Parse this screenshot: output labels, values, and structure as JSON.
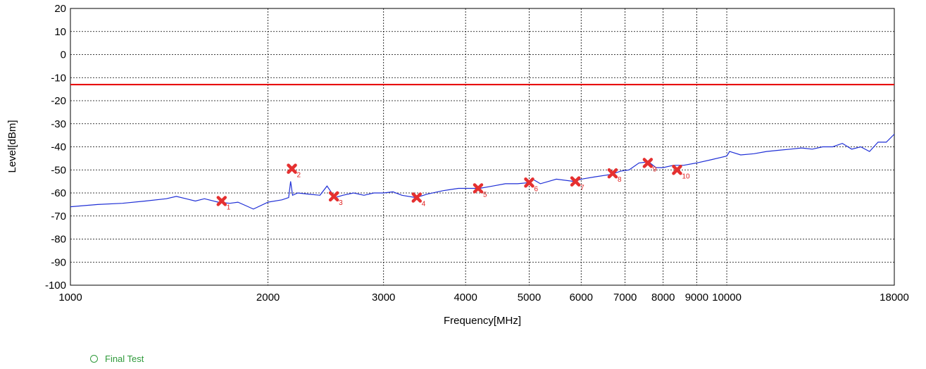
{
  "chart_data": {
    "type": "line",
    "xlabel": "Frequency[MHz]",
    "ylabel": "Level[dBm]",
    "xscale": "log",
    "xlim": [
      1000,
      18000
    ],
    "ylim": [
      -100,
      20
    ],
    "grid": true,
    "x_ticks": [
      1000,
      2000,
      3000,
      4000,
      5000,
      6000,
      7000,
      8000,
      9000,
      10000,
      18000
    ],
    "x_tick_labels": [
      "1000",
      "2000",
      "3000",
      "4000",
      "5000",
      "6000",
      "7000",
      "8000",
      "9000",
      "10000",
      "18000"
    ],
    "y_ticks": [
      20,
      10,
      0,
      -10,
      -20,
      -30,
      -40,
      -50,
      -60,
      -70,
      -80,
      -90,
      -100
    ],
    "y_tick_labels": [
      "20",
      "10",
      "0",
      "-10",
      "-20",
      "-30",
      "-40",
      "-50",
      "-60",
      "-70",
      "-80",
      "-90",
      "-100"
    ],
    "limit_line": {
      "value": -13,
      "color": "#e60000"
    },
    "series": [
      {
        "color": "#1f2fd6",
        "x": [
          1000,
          1100,
          1200,
          1300,
          1400,
          1450,
          1500,
          1550,
          1600,
          1680,
          1750,
          1800,
          1850,
          1900,
          2000,
          2100,
          2150,
          2165,
          2180,
          2220,
          2300,
          2400,
          2460,
          2530,
          2600,
          2700,
          2800,
          2900,
          3000,
          3100,
          3200,
          3360,
          3500,
          3700,
          3900,
          4200,
          4400,
          4600,
          4800,
          5000,
          5060,
          5200,
          5500,
          5850,
          6000,
          6300,
          6650,
          6900,
          7100,
          7350,
          7600,
          7800,
          8000,
          8300,
          8600,
          9000,
          9500,
          10000,
          10100,
          10500,
          11000,
          11500,
          12000,
          12500,
          13000,
          13500,
          14000,
          14500,
          15000,
          15500,
          16000,
          16500,
          17000,
          17500,
          18000
        ],
        "y": [
          -66,
          -65,
          -64.5,
          -63.5,
          -62.5,
          -61.5,
          -62.5,
          -63.5,
          -62.5,
          -64,
          -64.5,
          -64,
          -65.5,
          -67,
          -64,
          -63,
          -62,
          -55,
          -61,
          -60,
          -60.5,
          -61,
          -57,
          -62,
          -61,
          -60,
          -61,
          -60,
          -60,
          -59.5,
          -61,
          -62,
          -60.5,
          -59,
          -58,
          -58,
          -57,
          -56,
          -56,
          -55.5,
          -54,
          -56,
          -54,
          -55,
          -54,
          -53,
          -52,
          -50.5,
          -50,
          -47,
          -46.5,
          -49,
          -49,
          -48,
          -48,
          -47,
          -45.5,
          -44,
          -42,
          -43.5,
          -43,
          -42,
          -41.5,
          -41,
          -40.5,
          -41,
          -40,
          -40,
          -38.5,
          -41,
          -40,
          -42,
          -38,
          -38,
          -34.5
        ]
      }
    ],
    "markers": [
      {
        "label": "1",
        "x": 1700,
        "y": -63.5
      },
      {
        "label": "2",
        "x": 2175,
        "y": -49.5
      },
      {
        "label": "3",
        "x": 2520,
        "y": -61.5
      },
      {
        "label": "4",
        "x": 3370,
        "y": -62
      },
      {
        "label": "5",
        "x": 4180,
        "y": -58
      },
      {
        "label": "6",
        "x": 5000,
        "y": -55.5
      },
      {
        "label": "7",
        "x": 5880,
        "y": -55
      },
      {
        "label": "8",
        "x": 6700,
        "y": -51.5
      },
      {
        "label": "9",
        "x": 7580,
        "y": -47
      },
      {
        "label": "10",
        "x": 8400,
        "y": -50
      }
    ],
    "marker_color": "#e53030",
    "legend": {
      "position": "bottom-left",
      "label": "Final Test",
      "color": "#2e9a3a"
    }
  }
}
